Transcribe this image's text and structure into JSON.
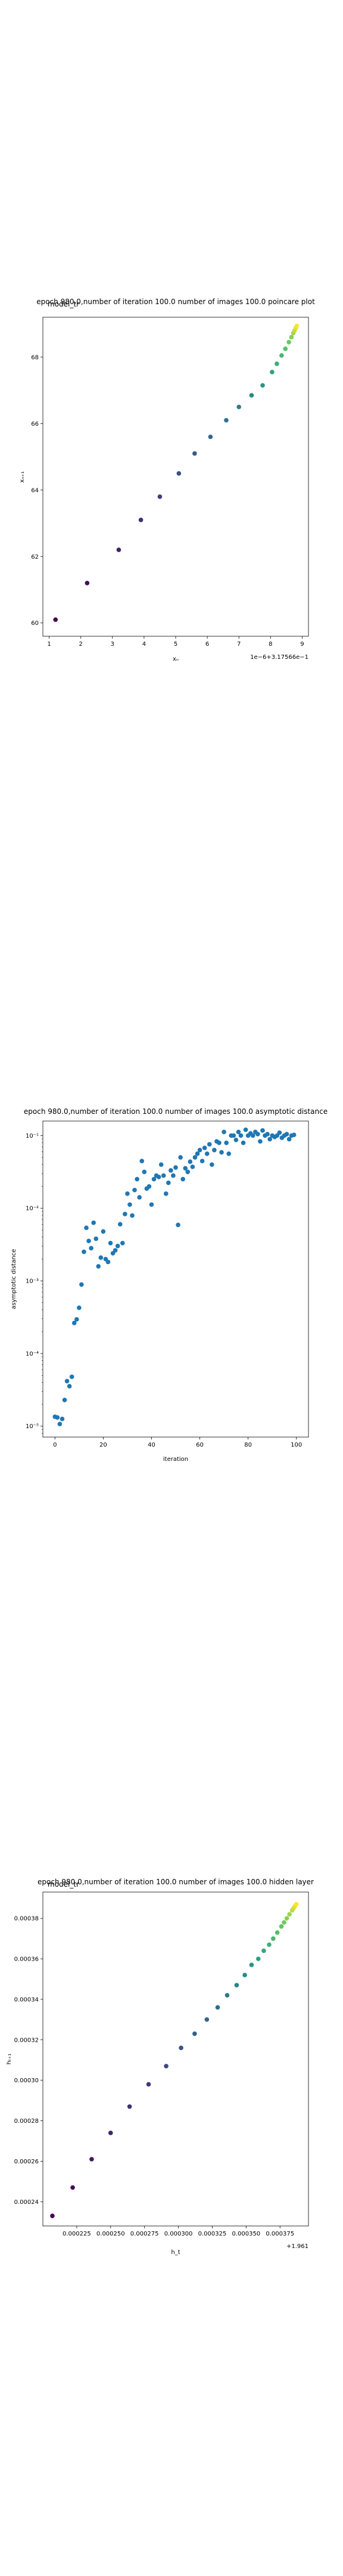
{
  "chart_data": [
    {
      "type": "scatter",
      "title": "epoch 980.0,number of iteration 100.0 number of images 100.0 poincare plot",
      "overlap_title": "model_tr",
      "xlabel": "xₙ",
      "ylabel": "xₙ₊₁",
      "offset_text": "1e−6+3.17566e−1",
      "xlim": [
        0.8,
        9.2
      ],
      "ylim": [
        59.6,
        69.2
      ],
      "xticks": [
        1,
        2,
        3,
        4,
        5,
        6,
        7,
        8,
        9
      ],
      "yticks": [
        60,
        62,
        64,
        66,
        68
      ],
      "colormap": "viridis",
      "series": [
        {
          "x": [
            1.2,
            2.2,
            3.2,
            3.9,
            4.5,
            5.1,
            5.6,
            6.1,
            6.6,
            7.0,
            7.4,
            7.75,
            8.05,
            8.2,
            8.35,
            8.47,
            8.58,
            8.66,
            8.72,
            8.76,
            8.8,
            8.83
          ],
          "y": [
            60.1,
            61.2,
            62.2,
            63.1,
            63.8,
            64.5,
            65.1,
            65.6,
            66.1,
            66.5,
            66.85,
            67.15,
            67.55,
            67.8,
            68.05,
            68.25,
            68.45,
            68.6,
            68.72,
            68.8,
            68.88,
            68.94
          ]
        }
      ]
    },
    {
      "type": "scatter",
      "title": "epoch 980.0,number of iteration 100.0  number of images 100.0 asymptotic distance",
      "xlabel": "iteration",
      "ylabel": "asymptotic distance",
      "xlim": [
        -5,
        105
      ],
      "yscale": "log",
      "ylim_exp": [
        -5.15,
        -0.8
      ],
      "xticks": [
        0,
        20,
        40,
        60,
        80,
        100
      ],
      "yticks": [
        -5,
        -4,
        -3,
        -2,
        -1
      ],
      "ytick_labels": [
        "10⁻⁵",
        "10⁻⁴",
        "10⁻³",
        "10⁻²",
        "10⁻¹"
      ],
      "color": "#1f77b4",
      "series": [
        {
          "x": [
            0,
            1,
            2,
            3,
            4,
            5,
            6,
            7,
            8,
            9,
            10,
            11,
            12,
            13,
            14,
            15,
            16,
            17,
            18,
            19,
            20,
            21,
            22,
            23,
            24,
            25,
            26,
            27,
            28,
            29,
            30,
            31,
            32,
            33,
            34,
            35,
            36,
            37,
            38,
            39,
            40,
            41,
            42,
            43,
            44,
            45,
            46,
            47,
            48,
            49,
            50,
            51,
            52,
            53,
            54,
            55,
            56,
            57,
            58,
            59,
            60,
            61,
            62,
            63,
            64,
            65,
            66,
            67,
            68,
            69,
            70,
            71,
            72,
            73,
            74,
            75,
            76,
            77,
            78,
            79,
            80,
            81,
            82,
            83,
            84,
            85,
            86,
            87,
            88,
            89,
            90,
            91,
            92,
            93,
            94,
            95,
            96,
            97,
            98,
            99
          ],
          "log10_y": [
            -4.87,
            -4.88,
            -4.97,
            -4.9,
            -4.64,
            -4.38,
            -4.45,
            -4.32,
            -3.58,
            -3.53,
            -3.37,
            -3.05,
            -2.6,
            -2.27,
            -2.45,
            -2.55,
            -2.2,
            -2.42,
            -2.8,
            -2.68,
            -2.32,
            -2.7,
            -2.74,
            -2.48,
            -2.62,
            -2.58,
            -2.52,
            -2.22,
            -2.48,
            -2.08,
            -1.8,
            -1.95,
            -2.1,
            -1.75,
            -1.6,
            -1.85,
            -1.35,
            -1.5,
            -1.73,
            -1.7,
            -1.95,
            -1.6,
            -1.55,
            -1.57,
            -1.4,
            -1.55,
            -1.8,
            -1.65,
            -1.48,
            -1.55,
            -1.44,
            -2.23,
            -1.3,
            -1.6,
            -1.45,
            -1.5,
            -1.36,
            -1.43,
            -1.3,
            -1.25,
            -1.2,
            -1.35,
            -1.17,
            -1.25,
            -1.12,
            -1.4,
            -1.2,
            -1.08,
            -1.1,
            -1.23,
            -0.95,
            -1.1,
            -1.25,
            -1.0,
            -1.0,
            -1.06,
            -0.95,
            -1.0,
            -1.1,
            -0.92,
            -1.0,
            -0.97,
            -1.0,
            -0.95,
            -0.98,
            -1.08,
            -0.93,
            -1.0,
            -0.98,
            -1.05,
            -1.0,
            -1.02,
            -1.0,
            -0.96,
            -1.03,
            -1.0,
            -0.98,
            -1.05,
            -1.0,
            -0.99
          ]
        }
      ]
    },
    {
      "type": "scatter",
      "title": "epoch 980.0,number of iteration 100.0  number of images 100.0 hidden layer",
      "overlap_title": "model_tr",
      "xlabel": "h_t",
      "ylabel": "hₜ₊₁",
      "offset_text": "+1.961",
      "xlim": [
        0.0002,
        0.000396
      ],
      "ylim": [
        0.000228,
        0.000393
      ],
      "xticks": [
        0.000225,
        0.00025,
        0.000275,
        0.0003,
        0.000325,
        0.00035,
        0.000375
      ],
      "xtick_labels": [
        "0.000225",
        "0.000250",
        "0.000275",
        "0.000300",
        "0.000325",
        "0.000350",
        "0.000375"
      ],
      "yticks": [
        0.00024,
        0.00026,
        0.00028,
        0.0003,
        0.00032,
        0.00034,
        0.00036,
        0.00038
      ],
      "ytick_labels": [
        "0.00024",
        "0.00026",
        "0.00028",
        "0.00030",
        "0.00032",
        "0.00034",
        "0.00036",
        "0.00038"
      ],
      "colormap": "viridis",
      "series": [
        {
          "x": [
            0.000207,
            0.000222,
            0.000236,
            0.00025,
            0.000264,
            0.000278,
            0.000291,
            0.000302,
            0.000312,
            0.000321,
            0.000329,
            0.000336,
            0.000343,
            0.000349,
            0.000354,
            0.000359,
            0.000363,
            0.000367,
            0.00037,
            0.000373,
            0.000376,
            0.000378,
            0.00038,
            0.000382,
            0.000384,
            0.000385,
            0.000386,
            0.000387
          ],
          "y": [
            0.000233,
            0.000247,
            0.000261,
            0.000274,
            0.000287,
            0.000298,
            0.000307,
            0.000316,
            0.000323,
            0.00033,
            0.000336,
            0.000342,
            0.000347,
            0.000352,
            0.000357,
            0.00036,
            0.000364,
            0.000367,
            0.00037,
            0.000373,
            0.000376,
            0.000378,
            0.00038,
            0.000382,
            0.000384,
            0.000385,
            0.000386,
            0.000387
          ]
        }
      ]
    }
  ]
}
